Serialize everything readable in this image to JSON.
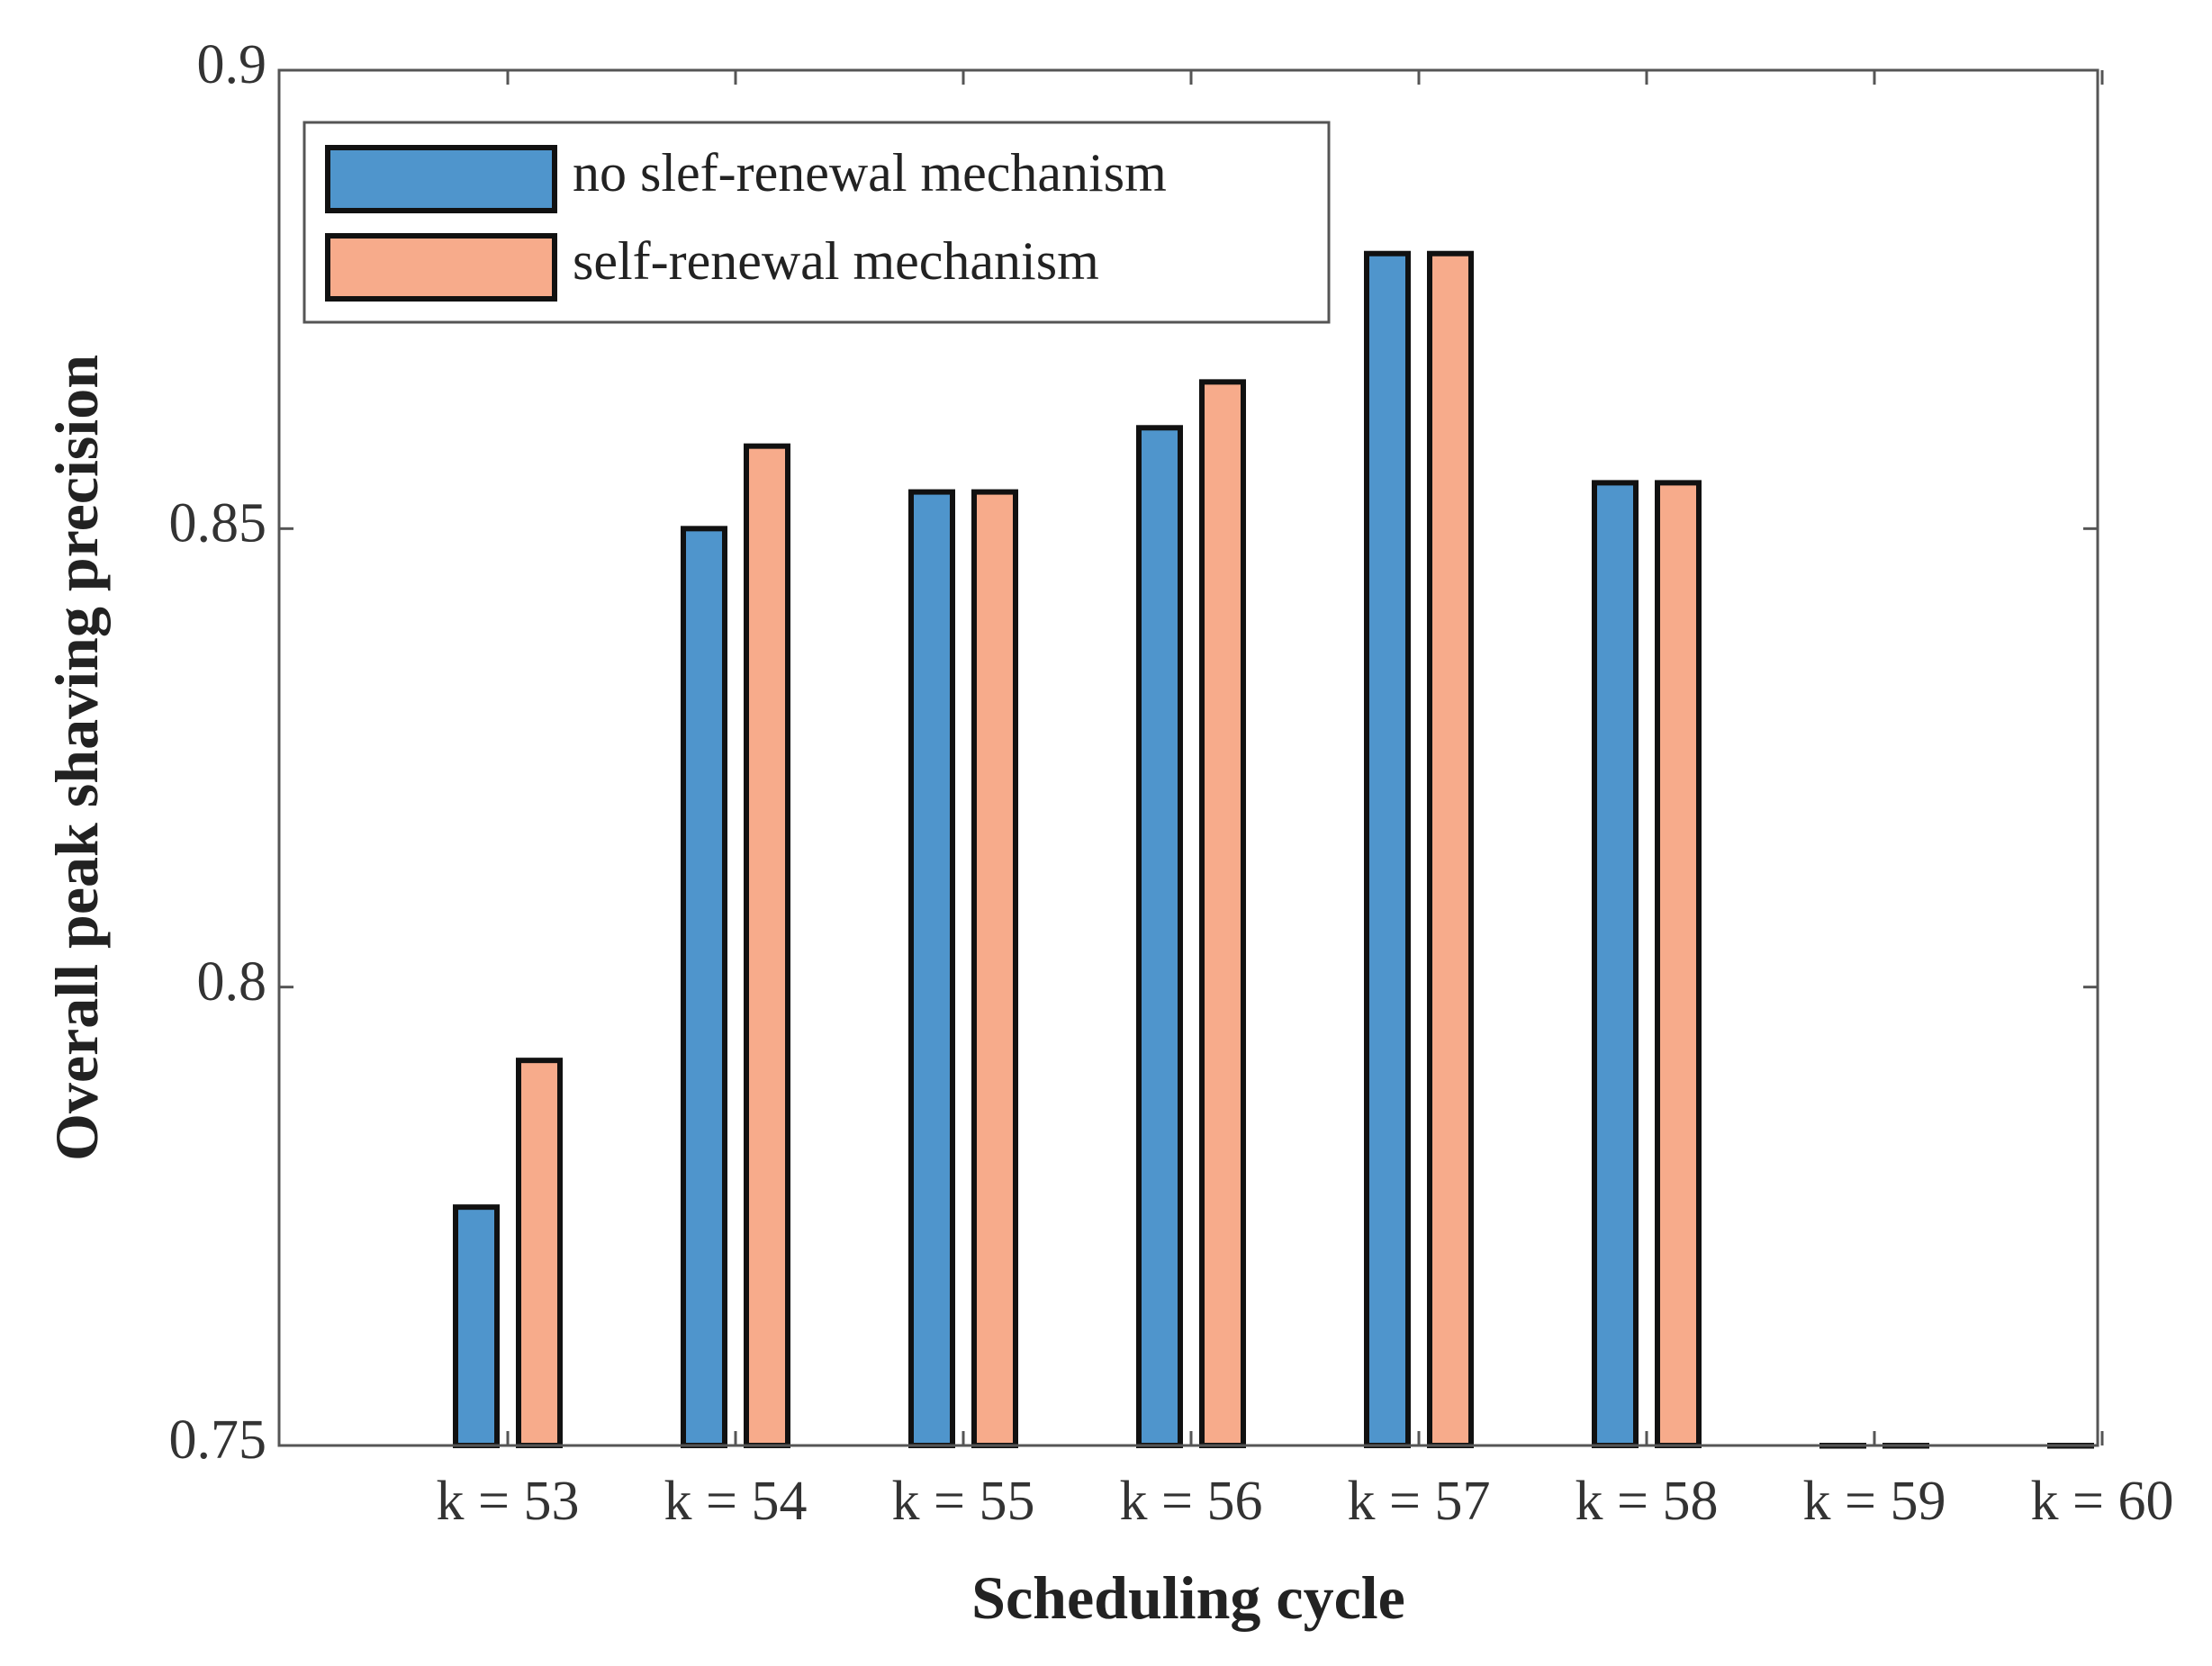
{
  "chart_data": {
    "type": "bar",
    "title": "",
    "xlabel": "Scheduling cycle",
    "ylabel": "Overall peak shaving precision",
    "ylim": [
      0.75,
      0.9
    ],
    "yticks": [
      0.75,
      0.8,
      0.85,
      0.9
    ],
    "ytick_labels": [
      "0.75",
      "0.8",
      "0.85",
      "0.9"
    ],
    "categories": [
      "k = 53",
      "k = 54",
      "k = 55",
      "k = 56",
      "k = 57",
      "k = 58",
      "k = 59",
      "k = 60"
    ],
    "series": [
      {
        "name": "no slef-renewal mechanism",
        "color": "#4f95cc",
        "values": [
          0.776,
          0.85,
          0.854,
          0.861,
          0.88,
          0.855,
          0.75,
          0.75
        ]
      },
      {
        "name": "self-renewal mechanism",
        "color": "#f7ab8b",
        "values": [
          0.792,
          0.859,
          0.854,
          0.866,
          0.88,
          0.855,
          0.75,
          null
        ]
      }
    ],
    "legend_position": "top-left",
    "grid": false
  }
}
